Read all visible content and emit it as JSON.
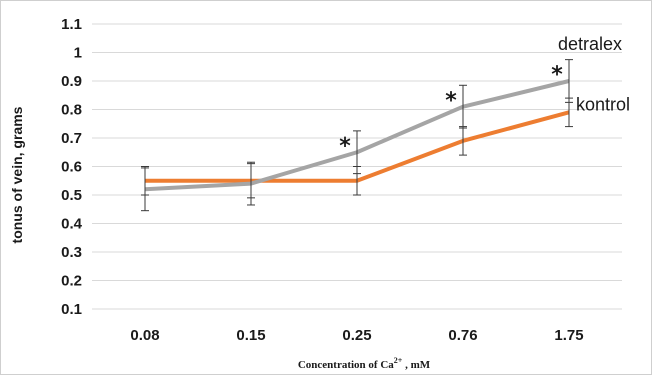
{
  "chart_data": {
    "type": "line",
    "title": "",
    "ylabel": "tonus of vein, grams",
    "xlabel": {
      "prefix": "Concentration of Ca",
      "superscript": "2+",
      "suffix": " ,  mM"
    },
    "categories": [
      "0.08",
      "0.15",
      "0.25",
      "0.76",
      "1.75"
    ],
    "ylim": [
      0.1,
      1.1
    ],
    "yticks": [
      "0.1",
      "0.2",
      "0.3",
      "0.4",
      "0.5",
      "0.6",
      "0.7",
      "0.8",
      "0.9",
      "1",
      "1.1"
    ],
    "grid": true,
    "series": [
      {
        "name": "kontrol",
        "color": "#ed7d31",
        "values": [
          0.55,
          0.55,
          0.55,
          0.69,
          0.79
        ],
        "errors": [
          0.05,
          0.06,
          0.05,
          0.05,
          0.05
        ]
      },
      {
        "name": "detralex",
        "color": "#a5a5a5",
        "values": [
          0.52,
          0.54,
          0.65,
          0.81,
          0.9
        ],
        "errors": [
          0.075,
          0.075,
          0.075,
          0.075,
          0.075
        ]
      }
    ],
    "annotations": [
      {
        "text": "*",
        "category": "0.25"
      },
      {
        "text": "*",
        "category": "0.76"
      },
      {
        "text": "*",
        "category": "1.75"
      }
    ]
  }
}
